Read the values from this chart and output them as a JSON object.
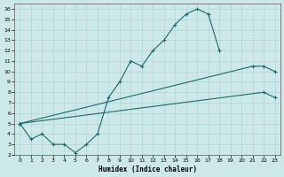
{
  "xlabel": "Humidex (Indice chaleur)",
  "bg_color": "#cce8e8",
  "line_color": "#1a6b6b",
  "xlim": [
    -0.5,
    23.5
  ],
  "ylim": [
    2,
    16.5
  ],
  "xticks": [
    0,
    1,
    2,
    3,
    4,
    5,
    6,
    7,
    8,
    9,
    10,
    11,
    12,
    13,
    14,
    15,
    16,
    17,
    18,
    19,
    20,
    21,
    22,
    23
  ],
  "yticks": [
    2,
    3,
    4,
    5,
    6,
    7,
    8,
    9,
    10,
    11,
    12,
    13,
    14,
    15,
    16
  ],
  "curve1": {
    "x": [
      0,
      1,
      2,
      3,
      4,
      5,
      6,
      7,
      8,
      9,
      10,
      11,
      12,
      13,
      14,
      15,
      16,
      17,
      18
    ],
    "y": [
      5,
      3.5,
      4,
      3,
      3,
      2.2,
      3,
      4,
      7.5,
      9,
      11,
      10.5,
      12,
      13,
      14.5,
      15.5,
      16,
      15.5,
      12
    ]
  },
  "curve2": {
    "x": [
      0,
      23
    ],
    "y": [
      5,
      10.5
    ]
  },
  "curve2_markers": {
    "x": [
      0,
      21,
      22,
      23
    ],
    "y": [
      5,
      10.5,
      10.5,
      10.0
    ]
  },
  "curve3": {
    "x": [
      0,
      23
    ],
    "y": [
      5,
      8.0
    ]
  },
  "curve3_markers": {
    "x": [
      0,
      22,
      23
    ],
    "y": [
      5,
      8.0,
      7.5
    ]
  }
}
